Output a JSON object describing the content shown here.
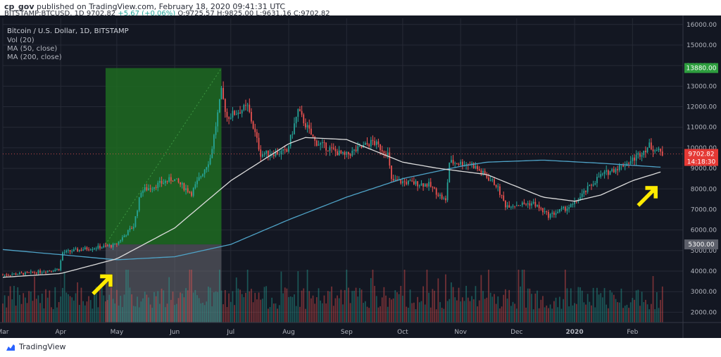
{
  "header": {
    "user": "cp_gov",
    "published": "published on TradingView.com, February 18, 2020 09:41:31 UTC",
    "symbol": "BITSTAMP:BTCUSD, 1D",
    "last": "9702.82",
    "change": "+5.67 (+0.06%)",
    "open_label": "O:",
    "open": "9725.57",
    "high_label": "H:",
    "high": "9825.00",
    "low_label": "L:",
    "low": "9631.16",
    "close_label": "C:",
    "close": "9702.82"
  },
  "legend": {
    "title": "Bitcoin / U.S. Dollar, 1D, BITSTAMP",
    "vol": "Vol (20)",
    "ma50": "MA (50, close)",
    "ma200": "MA (200, close)"
  },
  "price_tags": {
    "high_tag": "13880.00",
    "last_tag": "9702.82",
    "countdown": "14:18:30",
    "low_tag": "5300.00"
  },
  "footer": {
    "brand": "TradingView"
  },
  "colors": {
    "background": "#131722",
    "grid": "#262a36",
    "up": "#26a69a",
    "down": "#ef5350",
    "ma50": "#dcdcdc",
    "ma200": "#4fa3c7",
    "green_zone": "#1f6b21",
    "gray_zone": "#6b6b73",
    "arrow": "#ffeb00",
    "tag_green": "#2e9e3f",
    "tag_red": "#e53935",
    "tag_gray": "#5d606b"
  },
  "chart_data": {
    "type": "candlestick",
    "title": "Bitcoin / U.S. Dollar, 1D, BITSTAMP",
    "y_ticks": [
      2000,
      3000,
      4000,
      5000,
      6000,
      7000,
      8000,
      9000,
      10000,
      11000,
      12000,
      13000,
      14000,
      15000,
      16000
    ],
    "x_ticks": [
      "Mar",
      "Apr",
      "May",
      "Jun",
      "Jul",
      "Aug",
      "Sep",
      "Oct",
      "Nov",
      "Dec",
      "2020",
      "Feb"
    ],
    "ylim": [
      1500,
      16300
    ],
    "xlim": [
      "2019-03-01",
      "2020-02-28"
    ],
    "price_path": [
      [
        "2019-03-01",
        3820
      ],
      [
        "2019-03-15",
        3900
      ],
      [
        "2019-03-31",
        4100
      ],
      [
        "2019-04-02",
        4900
      ],
      [
        "2019-04-15",
        5100
      ],
      [
        "2019-04-30",
        5250
      ],
      [
        "2019-05-10",
        6200
      ],
      [
        "2019-05-14",
        7900
      ],
      [
        "2019-05-31",
        8500
      ],
      [
        "2019-06-10",
        7800
      ],
      [
        "2019-06-20",
        9500
      ],
      [
        "2019-06-26",
        12700
      ],
      [
        "2019-06-29",
        11500
      ],
      [
        "2019-07-10",
        12000
      ],
      [
        "2019-07-17",
        9700
      ],
      [
        "2019-07-31",
        9800
      ],
      [
        "2019-08-06",
        11800
      ],
      [
        "2019-08-15",
        10300
      ],
      [
        "2019-08-31",
        9600
      ],
      [
        "2019-09-15",
        10300
      ],
      [
        "2019-09-23",
        9700
      ],
      [
        "2019-09-25",
        8400
      ],
      [
        "2019-10-15",
        8200
      ],
      [
        "2019-10-24",
        7400
      ],
      [
        "2019-10-26",
        9300
      ],
      [
        "2019-11-07",
        9200
      ],
      [
        "2019-11-20",
        8200
      ],
      [
        "2019-11-25",
        7200
      ],
      [
        "2019-12-10",
        7300
      ],
      [
        "2019-12-18",
        6700
      ],
      [
        "2019-12-31",
        7200
      ],
      [
        "2020-01-14",
        8600
      ],
      [
        "2020-01-31",
        9350
      ],
      [
        "2020-02-10",
        10100
      ],
      [
        "2020-02-17",
        9703
      ]
    ],
    "ma50_path": [
      [
        "2019-03-01",
        3700
      ],
      [
        "2019-04-01",
        3880
      ],
      [
        "2019-05-01",
        4600
      ],
      [
        "2019-06-01",
        6100
      ],
      [
        "2019-07-01",
        8400
      ],
      [
        "2019-08-01",
        10200
      ],
      [
        "2019-08-10",
        10500
      ],
      [
        "2019-09-01",
        10400
      ],
      [
        "2019-10-01",
        9300
      ],
      [
        "2019-10-20",
        9000
      ],
      [
        "2019-11-15",
        8700
      ],
      [
        "2019-12-15",
        7600
      ],
      [
        "2020-01-01",
        7400
      ],
      [
        "2020-01-15",
        7700
      ],
      [
        "2020-02-01",
        8400
      ],
      [
        "2020-02-17",
        8850
      ]
    ],
    "ma200_path": [
      [
        "2019-03-01",
        5050
      ],
      [
        "2019-04-01",
        4800
      ],
      [
        "2019-05-01",
        4550
      ],
      [
        "2019-06-01",
        4700
      ],
      [
        "2019-07-01",
        5300
      ],
      [
        "2019-08-01",
        6500
      ],
      [
        "2019-09-01",
        7600
      ],
      [
        "2019-10-01",
        8500
      ],
      [
        "2019-11-01",
        9100
      ],
      [
        "2019-11-15",
        9300
      ],
      [
        "2019-12-15",
        9400
      ],
      [
        "2020-01-15",
        9250
      ],
      [
        "2020-02-17",
        9050
      ]
    ],
    "highlight_zones": [
      {
        "from": "2019-04-25",
        "to": "2019-06-26",
        "low": 5300,
        "high": 13880,
        "color": "green"
      },
      {
        "from": "2019-04-25",
        "to": "2019-06-26",
        "low": 1500,
        "high": 5300,
        "color": "gray"
      }
    ],
    "arrows": [
      {
        "at": "2019-05-02",
        "points_to": "ma-crossover",
        "direction": "up-right"
      },
      {
        "at": "2020-02-10",
        "points_to": "ma-crossover",
        "direction": "up-right"
      }
    ]
  }
}
